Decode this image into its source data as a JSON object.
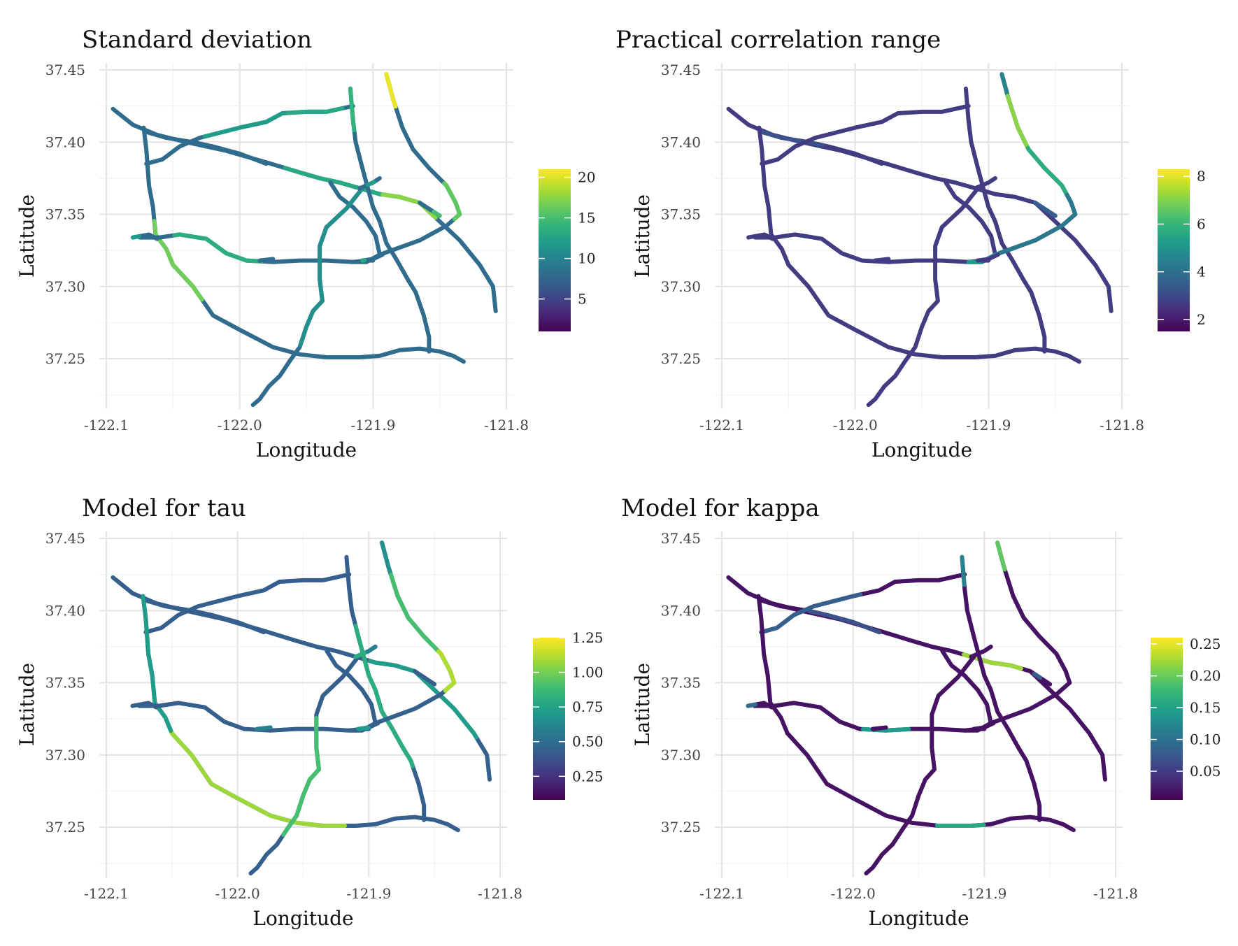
{
  "colors": {
    "viridis": [
      "#440154",
      "#482878",
      "#3e4a89",
      "#31688e",
      "#26828e",
      "#1f9e89",
      "#35b779",
      "#6ece58",
      "#b5de2b",
      "#fde725"
    ],
    "grid": "#e3e3e3",
    "text": "#111111"
  },
  "chart_data": [
    {
      "type": "map",
      "title": "Standard deviation",
      "xlabel": "Longitude",
      "ylabel": "Latitude",
      "xlim": [
        -122.1,
        -121.8
      ],
      "ylim": [
        37.22,
        37.45
      ],
      "x_ticks": [
        "-122.1",
        "-122.0",
        "-121.9",
        "-121.8"
      ],
      "y_ticks": [
        "37.25",
        "37.30",
        "37.35",
        "37.40",
        "37.45"
      ],
      "legend": {
        "position": "right",
        "min": 1,
        "max": 21,
        "ticks": [
          5,
          10,
          15,
          20
        ],
        "tick_labels": [
          "5",
          "10",
          "15",
          "20"
        ]
      },
      "base_value": 0.35,
      "highlights": [
        {
          "road": 7,
          "from": 0.0,
          "to": 0.12,
          "value": 0.97
        },
        {
          "road": 7,
          "from": 0.45,
          "to": 0.6,
          "value": 0.75
        },
        {
          "road": 5,
          "from": 0.0,
          "to": 0.15,
          "value": 0.65
        },
        {
          "road": 0,
          "from": 0.4,
          "to": 0.62,
          "value": 0.6
        },
        {
          "road": 0,
          "from": 0.62,
          "to": 0.75,
          "value": 0.82
        },
        {
          "road": 4,
          "from": 0.15,
          "to": 0.55,
          "value": 0.62
        },
        {
          "road": 2,
          "from": 0.3,
          "to": 0.7,
          "value": 0.55
        },
        {
          "road": 3,
          "from": 0.2,
          "to": 0.4,
          "value": 0.78
        },
        {
          "road": 2,
          "from": 0.7,
          "to": 0.95,
          "value": 0.6
        },
        {
          "road": 8,
          "from": 0.0,
          "to": 0.7,
          "value": 0.5
        },
        {
          "road": 10,
          "from": 0.4,
          "to": 0.7,
          "value": 0.55
        },
        {
          "road": 9,
          "from": 0.0,
          "to": 0.25,
          "value": 0.55
        },
        {
          "road": 13,
          "from": 0.0,
          "to": 0.1,
          "value": 0.6
        },
        {
          "road": 14,
          "from": 0.7,
          "to": 1.0,
          "value": 0.7
        }
      ]
    },
    {
      "type": "map",
      "title": "Practical correlation range",
      "xlabel": "Longitude",
      "ylabel": "Latitude",
      "xlim": [
        -122.1,
        -121.8
      ],
      "ylim": [
        37.22,
        37.45
      ],
      "x_ticks": [
        "-122.1",
        "-122.0",
        "-121.9",
        "-121.8"
      ],
      "y_ticks": [
        "37.25",
        "37.30",
        "37.35",
        "37.40",
        "37.45"
      ],
      "legend": {
        "position": "right",
        "min": 1.5,
        "max": 8.3,
        "ticks": [
          2,
          4,
          6,
          8
        ],
        "tick_labels": [
          "2",
          "4",
          "6",
          "8"
        ]
      },
      "base_value": 0.18,
      "highlights": [
        {
          "road": 7,
          "from": 0.0,
          "to": 0.08,
          "value": 0.45
        },
        {
          "road": 7,
          "from": 0.08,
          "to": 0.28,
          "value": 0.82
        },
        {
          "road": 7,
          "from": 0.28,
          "to": 0.5,
          "value": 0.62
        },
        {
          "road": 7,
          "from": 0.5,
          "to": 0.9,
          "value": 0.4
        },
        {
          "road": 7,
          "from": 0.9,
          "to": 1.0,
          "value": 0.55
        },
        {
          "road": 1,
          "from": 0.0,
          "to": 0.5,
          "value": 0.25
        },
        {
          "road": 14,
          "from": 0.0,
          "to": 1.0,
          "value": 0.3
        }
      ]
    },
    {
      "type": "map",
      "title": "Model for tau",
      "xlabel": "Longitude",
      "ylabel": "Latitude",
      "xlim": [
        -122.1,
        -121.8
      ],
      "ylim": [
        37.22,
        37.45
      ],
      "x_ticks": [
        "-122.1",
        "-122.0",
        "-121.9",
        "-121.8"
      ],
      "y_ticks": [
        "37.25",
        "37.30",
        "37.35",
        "37.40",
        "37.45"
      ],
      "legend": {
        "position": "right",
        "min": 0.08,
        "max": 1.25,
        "ticks": [
          0.25,
          0.5,
          0.75,
          1.0,
          1.25
        ],
        "tick_labels": [
          "0.25",
          "0.50",
          "0.75",
          "1.00",
          "1.25"
        ]
      },
      "base_value": 0.3,
      "highlights": [
        {
          "road": 7,
          "from": 0.0,
          "to": 0.12,
          "value": 0.5
        },
        {
          "road": 7,
          "from": 0.12,
          "to": 0.45,
          "value": 0.7
        },
        {
          "road": 7,
          "from": 0.45,
          "to": 0.62,
          "value": 0.88
        },
        {
          "road": 5,
          "from": 0.25,
          "to": 0.8,
          "value": 0.62
        },
        {
          "road": 3,
          "from": 0.3,
          "to": 0.75,
          "value": 0.85
        },
        {
          "road": 3,
          "from": 0.0,
          "to": 0.3,
          "value": 0.55
        },
        {
          "road": 8,
          "from": 0.3,
          "to": 0.8,
          "value": 0.7
        },
        {
          "road": 10,
          "from": 0.0,
          "to": 0.6,
          "value": 0.62
        },
        {
          "road": 10,
          "from": 0.6,
          "to": 1.0,
          "value": 0.45
        },
        {
          "road": 0,
          "from": 0.6,
          "to": 0.9,
          "value": 0.55
        },
        {
          "road": 13,
          "from": 0.0,
          "to": 0.5,
          "value": 0.55
        },
        {
          "road": 11,
          "from": 0.0,
          "to": 1.0,
          "value": 0.45
        }
      ]
    },
    {
      "type": "map",
      "title": "Model for kappa",
      "xlabel": "Longitude",
      "ylabel": "Latitude",
      "xlim": [
        -122.1,
        -121.8
      ],
      "ylim": [
        37.22,
        37.45
      ],
      "x_ticks": [
        "-122.1",
        "-122.0",
        "-121.9",
        "-121.8"
      ],
      "y_ticks": [
        "37.25",
        "37.30",
        "37.35",
        "37.40",
        "37.45"
      ],
      "legend": {
        "position": "right",
        "min": 0.005,
        "max": 0.26,
        "ticks": [
          0.05,
          0.1,
          0.15,
          0.2,
          0.25
        ],
        "tick_labels": [
          "0.05",
          "0.10",
          "0.15",
          "0.20",
          "0.25"
        ]
      },
      "base_value": 0.05,
      "highlights": [
        {
          "road": 7,
          "from": 0.0,
          "to": 0.1,
          "value": 0.75
        },
        {
          "road": 2,
          "from": 0.0,
          "to": 0.5,
          "value": 0.3
        },
        {
          "road": 0,
          "from": 0.55,
          "to": 0.68,
          "value": 0.85
        },
        {
          "road": 3,
          "from": 0.7,
          "to": 0.8,
          "value": 0.6
        },
        {
          "road": 4,
          "from": 0.5,
          "to": 0.7,
          "value": 0.55
        },
        {
          "road": 9,
          "from": 0.0,
          "to": 0.3,
          "value": 0.35
        },
        {
          "road": 5,
          "from": 0.0,
          "to": 0.1,
          "value": 0.45
        },
        {
          "road": 14,
          "from": 0.2,
          "to": 0.5,
          "value": 0.3
        },
        {
          "road": 1,
          "from": 0.4,
          "to": 1.0,
          "value": 0.25
        }
      ]
    }
  ],
  "roads": [
    [
      [
        -122.095,
        37.423
      ],
      [
        -122.08,
        37.412
      ],
      [
        -122.062,
        37.405
      ],
      [
        -122.04,
        37.4
      ],
      [
        -122.01,
        37.394
      ],
      [
        -121.98,
        37.386
      ],
      [
        -121.955,
        37.379
      ],
      [
        -121.94,
        37.375
      ],
      [
        -121.925,
        37.372
      ],
      [
        -121.91,
        37.368
      ],
      [
        -121.895,
        37.364
      ],
      [
        -121.88,
        37.362
      ],
      [
        -121.865,
        37.358
      ],
      [
        -121.85,
        37.345
      ],
      [
        -121.835,
        37.332
      ],
      [
        -121.82,
        37.315
      ],
      [
        -121.81,
        37.3
      ],
      [
        -121.808,
        37.283
      ]
    ],
    [
      [
        -122.07,
        37.407
      ],
      [
        -122.055,
        37.403
      ],
      [
        -122.035,
        37.4
      ],
      [
        -122.02,
        37.397
      ],
      [
        -122.0,
        37.392
      ],
      [
        -121.98,
        37.385
      ]
    ],
    [
      [
        -122.07,
        37.385
      ],
      [
        -122.058,
        37.388
      ],
      [
        -122.045,
        37.397
      ],
      [
        -122.03,
        37.403
      ],
      [
        -122.0,
        37.41
      ],
      [
        -121.98,
        37.414
      ],
      [
        -121.968,
        37.42
      ],
      [
        -121.95,
        37.421
      ],
      [
        -121.935,
        37.421
      ],
      [
        -121.92,
        37.424
      ],
      [
        -121.915,
        37.425
      ]
    ],
    [
      [
        -122.072,
        37.41
      ],
      [
        -122.07,
        37.395
      ],
      [
        -122.068,
        37.37
      ],
      [
        -122.065,
        37.355
      ],
      [
        -122.063,
        37.336
      ],
      [
        -122.055,
        37.326
      ],
      [
        -122.05,
        37.315
      ],
      [
        -122.035,
        37.3
      ],
      [
        -122.02,
        37.28
      ],
      [
        -122.0,
        37.27
      ],
      [
        -121.975,
        37.258
      ],
      [
        -121.955,
        37.253
      ],
      [
        -121.935,
        37.251
      ],
      [
        -121.91,
        37.251
      ],
      [
        -121.895,
        37.252
      ],
      [
        -121.88,
        37.256
      ],
      [
        -121.865,
        37.257
      ],
      [
        -121.85,
        37.255
      ],
      [
        -121.84,
        37.252
      ],
      [
        -121.832,
        37.248
      ]
    ],
    [
      [
        -122.075,
        37.334
      ],
      [
        -122.06,
        37.334
      ],
      [
        -122.045,
        37.336
      ],
      [
        -122.025,
        37.333
      ],
      [
        -122.01,
        37.323
      ],
      [
        -121.995,
        37.318
      ],
      [
        -121.975,
        37.317
      ],
      [
        -121.955,
        37.318
      ],
      [
        -121.935,
        37.318
      ],
      [
        -121.915,
        37.317
      ],
      [
        -121.905,
        37.318
      ]
    ],
    [
      [
        -121.917,
        37.437
      ],
      [
        -121.915,
        37.415
      ],
      [
        -121.913,
        37.4
      ],
      [
        -121.908,
        37.382
      ],
      [
        -121.903,
        37.365
      ],
      [
        -121.9,
        37.355
      ],
      [
        -121.895,
        37.345
      ],
      [
        -121.89,
        37.33
      ],
      [
        -121.882,
        37.318
      ],
      [
        -121.874,
        37.305
      ],
      [
        -121.868,
        37.296
      ],
      [
        -121.862,
        37.28
      ],
      [
        -121.858,
        37.265
      ],
      [
        -121.858,
        37.255
      ]
    ],
    [
      [
        -121.932,
        37.372
      ],
      [
        -121.925,
        37.362
      ],
      [
        -121.915,
        37.355
      ],
      [
        -121.905,
        37.345
      ],
      [
        -121.898,
        37.335
      ],
      [
        -121.895,
        37.322
      ]
    ],
    [
      [
        -121.89,
        37.447
      ],
      [
        -121.885,
        37.43
      ],
      [
        -121.878,
        37.41
      ],
      [
        -121.87,
        37.395
      ],
      [
        -121.858,
        37.382
      ],
      [
        -121.845,
        37.37
      ],
      [
        -121.838,
        37.358
      ],
      [
        -121.835,
        37.35
      ],
      [
        -121.845,
        37.342
      ],
      [
        -121.865,
        37.332
      ],
      [
        -121.88,
        37.327
      ],
      [
        -121.895,
        37.322
      ],
      [
        -121.905,
        37.317
      ],
      [
        -121.915,
        37.317
      ]
    ],
    [
      [
        -121.908,
        37.368
      ],
      [
        -121.92,
        37.354
      ],
      [
        -121.935,
        37.341
      ],
      [
        -121.94,
        37.328
      ],
      [
        -121.94,
        37.305
      ],
      [
        -121.938,
        37.29
      ],
      [
        -121.945,
        37.283
      ],
      [
        -121.95,
        37.272
      ],
      [
        -121.955,
        37.258
      ],
      [
        -121.962,
        37.249
      ],
      [
        -121.97,
        37.238
      ],
      [
        -121.978,
        37.231
      ],
      [
        -121.985,
        37.222
      ],
      [
        -121.99,
        37.218
      ]
    ],
    [
      [
        -122.08,
        37.334
      ],
      [
        -122.068,
        37.336
      ],
      [
        -122.062,
        37.333
      ]
    ],
    [
      [
        -121.91,
        37.368
      ],
      [
        -121.9,
        37.372
      ],
      [
        -121.895,
        37.375
      ]
    ],
    [
      [
        -121.985,
        37.318
      ],
      [
        -121.975,
        37.319
      ]
    ],
    [
      [
        -121.905,
        37.318
      ],
      [
        -121.9,
        37.318
      ]
    ],
    [
      [
        -121.908,
        37.318
      ],
      [
        -121.9,
        37.319
      ],
      [
        -121.893,
        37.322
      ]
    ],
    [
      [
        -121.865,
        37.358
      ],
      [
        -121.85,
        37.349
      ]
    ]
  ]
}
